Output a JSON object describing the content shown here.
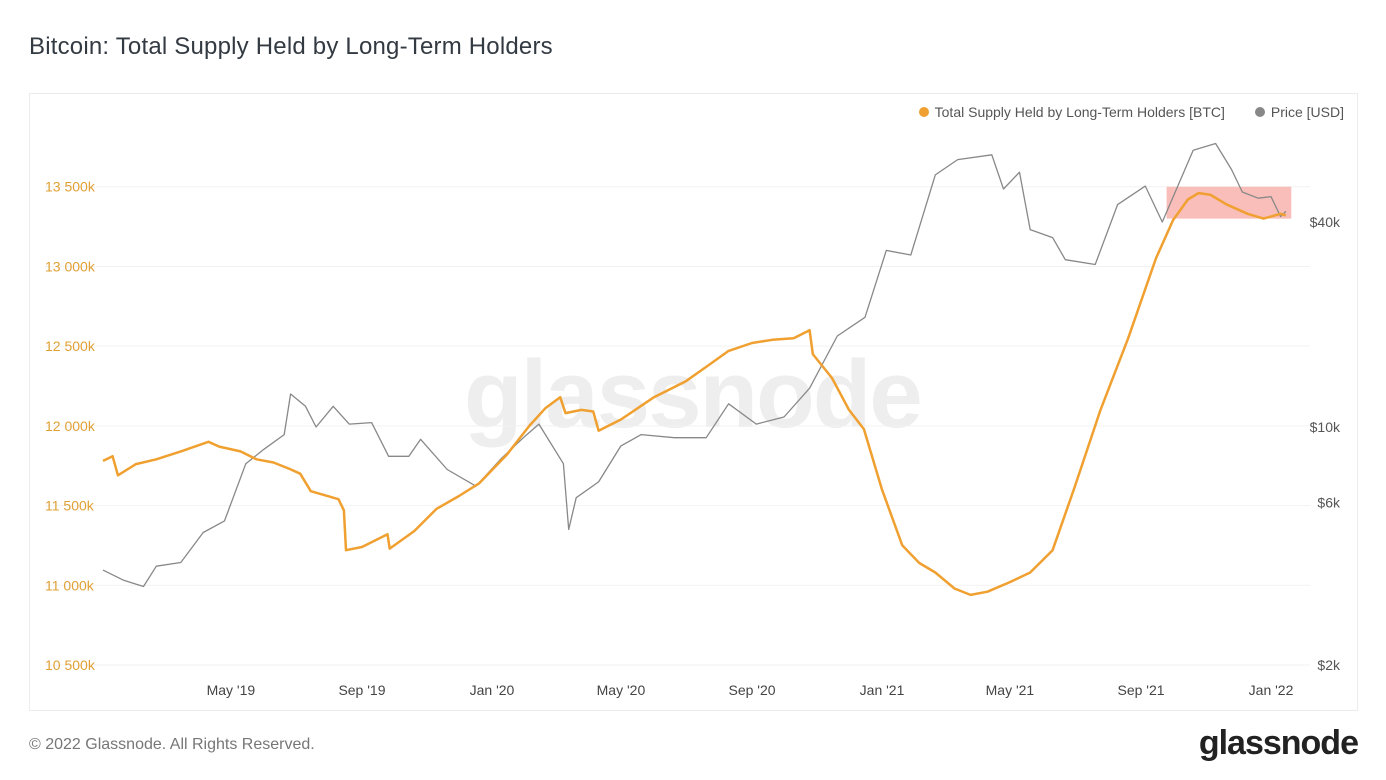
{
  "title": "Bitcoin: Total Supply Held by Long-Term Holders",
  "legend": {
    "lth": {
      "label": "Total Supply Held by Long-Term Holders [BTC]",
      "color": "#f0a030"
    },
    "price": {
      "label": "Price [USD]",
      "color": "#888888"
    }
  },
  "watermark": "glassnode",
  "footer": "© 2022 Glassnode. All Rights Reserved.",
  "brand": "glassnode",
  "chart_data": {
    "type": "line",
    "title": "Bitcoin: Total Supply Held by Long-Term Holders",
    "x_ticks": [
      "May '19",
      "Sep '19",
      "Jan '20",
      "May '20",
      "Sep '20",
      "Jan '21",
      "May '21",
      "Sep '21",
      "Jan '22"
    ],
    "x_range": [
      "2019-01-01",
      "2022-01-31"
    ],
    "left_axis": {
      "ticks": [
        10500000,
        11000000,
        11500000,
        12000000,
        12500000,
        13000000,
        13500000
      ],
      "tick_labels": [
        "10 500k",
        "11 000k",
        "11 500k",
        "12 000k",
        "12 500k",
        "13 000k",
        "13 500k"
      ],
      "range": [
        10500000,
        13950000
      ]
    },
    "right_axis": {
      "scale": "log",
      "ticks": [
        2000,
        6000,
        10000,
        40000
      ],
      "tick_labels": [
        "$2k",
        "$6k",
        "$10k",
        "$40k"
      ]
    },
    "series": [
      {
        "name": "Total Supply Held by Long-Term Holders [BTC]",
        "axis": "left",
        "color": "#f0a030",
        "points": [
          [
            "2019-01-01",
            11780000
          ],
          [
            "2019-01-10",
            11810000
          ],
          [
            "2019-01-15",
            11690000
          ],
          [
            "2019-02-01",
            11760000
          ],
          [
            "2019-02-20",
            11790000
          ],
          [
            "2019-03-15",
            11840000
          ],
          [
            "2019-04-10",
            11900000
          ],
          [
            "2019-04-20",
            11870000
          ],
          [
            "2019-05-10",
            11840000
          ],
          [
            "2019-05-25",
            11790000
          ],
          [
            "2019-06-10",
            11770000
          ],
          [
            "2019-06-25",
            11730000
          ],
          [
            "2019-07-05",
            11700000
          ],
          [
            "2019-07-15",
            11590000
          ],
          [
            "2019-08-10",
            11540000
          ],
          [
            "2019-08-15",
            11470000
          ],
          [
            "2019-08-17",
            11220000
          ],
          [
            "2019-09-01",
            11240000
          ],
          [
            "2019-09-25",
            11320000
          ],
          [
            "2019-09-27",
            11230000
          ],
          [
            "2019-10-20",
            11340000
          ],
          [
            "2019-11-10",
            11480000
          ],
          [
            "2019-12-01",
            11560000
          ],
          [
            "2019-12-20",
            11640000
          ],
          [
            "2020-01-15",
            11820000
          ],
          [
            "2020-02-05",
            12000000
          ],
          [
            "2020-02-20",
            12110000
          ],
          [
            "2020-03-05",
            12180000
          ],
          [
            "2020-03-10",
            12080000
          ],
          [
            "2020-03-25",
            12100000
          ],
          [
            "2020-04-05",
            12090000
          ],
          [
            "2020-04-10",
            11970000
          ],
          [
            "2020-05-01",
            12040000
          ],
          [
            "2020-06-01",
            12180000
          ],
          [
            "2020-07-01",
            12280000
          ],
          [
            "2020-07-20",
            12370000
          ],
          [
            "2020-08-10",
            12470000
          ],
          [
            "2020-09-01",
            12520000
          ],
          [
            "2020-09-20",
            12540000
          ],
          [
            "2020-10-10",
            12550000
          ],
          [
            "2020-10-25",
            12600000
          ],
          [
            "2020-10-28",
            12450000
          ],
          [
            "2020-11-15",
            12300000
          ],
          [
            "2020-12-01",
            12100000
          ],
          [
            "2020-12-15",
            11980000
          ],
          [
            "2021-01-01",
            11600000
          ],
          [
            "2021-01-20",
            11250000
          ],
          [
            "2021-02-05",
            11140000
          ],
          [
            "2021-02-20",
            11080000
          ],
          [
            "2021-03-10",
            10980000
          ],
          [
            "2021-03-25",
            10940000
          ],
          [
            "2021-04-10",
            10960000
          ],
          [
            "2021-05-01",
            11020000
          ],
          [
            "2021-05-20",
            11080000
          ],
          [
            "2021-06-10",
            11220000
          ],
          [
            "2021-07-01",
            11620000
          ],
          [
            "2021-07-25",
            12100000
          ],
          [
            "2021-08-20",
            12550000
          ],
          [
            "2021-09-15",
            13050000
          ],
          [
            "2021-10-01",
            13290000
          ],
          [
            "2021-10-15",
            13420000
          ],
          [
            "2021-10-25",
            13460000
          ],
          [
            "2021-11-05",
            13450000
          ],
          [
            "2021-11-20",
            13390000
          ],
          [
            "2021-12-10",
            13330000
          ],
          [
            "2021-12-25",
            13300000
          ],
          [
            "2022-01-10",
            13330000
          ],
          [
            "2022-01-15",
            13320000
          ]
        ]
      },
      {
        "name": "Price [USD]",
        "axis": "right",
        "color": "#888888",
        "points": [
          [
            "2019-01-01",
            3800
          ],
          [
            "2019-01-20",
            3550
          ],
          [
            "2019-02-08",
            3400
          ],
          [
            "2019-02-20",
            3900
          ],
          [
            "2019-03-15",
            4000
          ],
          [
            "2019-04-05",
            4900
          ],
          [
            "2019-04-25",
            5300
          ],
          [
            "2019-05-15",
            7800
          ],
          [
            "2019-06-01",
            8600
          ],
          [
            "2019-06-20",
            9500
          ],
          [
            "2019-06-26",
            12500
          ],
          [
            "2019-07-10",
            11500
          ],
          [
            "2019-07-20",
            10000
          ],
          [
            "2019-08-05",
            11500
          ],
          [
            "2019-08-20",
            10200
          ],
          [
            "2019-09-10",
            10300
          ],
          [
            "2019-09-26",
            8200
          ],
          [
            "2019-10-15",
            8200
          ],
          [
            "2019-10-26",
            9200
          ],
          [
            "2019-11-20",
            7500
          ],
          [
            "2019-12-17",
            6700
          ],
          [
            "2020-01-10",
            8100
          ],
          [
            "2020-02-01",
            9400
          ],
          [
            "2020-02-14",
            10200
          ],
          [
            "2020-03-08",
            7800
          ],
          [
            "2020-03-13",
            5000
          ],
          [
            "2020-03-20",
            6200
          ],
          [
            "2020-04-10",
            6900
          ],
          [
            "2020-05-01",
            8800
          ],
          [
            "2020-05-20",
            9500
          ],
          [
            "2020-06-20",
            9300
          ],
          [
            "2020-07-20",
            9300
          ],
          [
            "2020-08-10",
            11700
          ],
          [
            "2020-09-05",
            10200
          ],
          [
            "2020-10-01",
            10700
          ],
          [
            "2020-10-25",
            13000
          ],
          [
            "2020-11-20",
            18500
          ],
          [
            "2020-12-16",
            21000
          ],
          [
            "2021-01-05",
            33000
          ],
          [
            "2021-01-28",
            32000
          ],
          [
            "2021-02-20",
            55000
          ],
          [
            "2021-03-13",
            61000
          ],
          [
            "2021-04-14",
            63000
          ],
          [
            "2021-04-25",
            50000
          ],
          [
            "2021-05-10",
            56000
          ],
          [
            "2021-05-20",
            38000
          ],
          [
            "2021-06-10",
            36000
          ],
          [
            "2021-06-22",
            31000
          ],
          [
            "2021-07-20",
            30000
          ],
          [
            "2021-08-10",
            45000
          ],
          [
            "2021-09-05",
            51000
          ],
          [
            "2021-09-21",
            40000
          ],
          [
            "2021-10-10",
            55000
          ],
          [
            "2021-10-20",
            65000
          ],
          [
            "2021-11-10",
            68000
          ],
          [
            "2021-11-25",
            57000
          ],
          [
            "2021-12-05",
            49000
          ],
          [
            "2021-12-20",
            47000
          ],
          [
            "2022-01-01",
            47500
          ],
          [
            "2022-01-10",
            41500
          ],
          [
            "2022-01-15",
            43000
          ]
        ]
      }
    ],
    "highlight": {
      "x_range": [
        "2021-09-25",
        "2022-01-20"
      ],
      "y_range": [
        13300000,
        13500000
      ],
      "color": "#f8b3ad"
    },
    "grid": true,
    "legend_position": "top-right"
  }
}
